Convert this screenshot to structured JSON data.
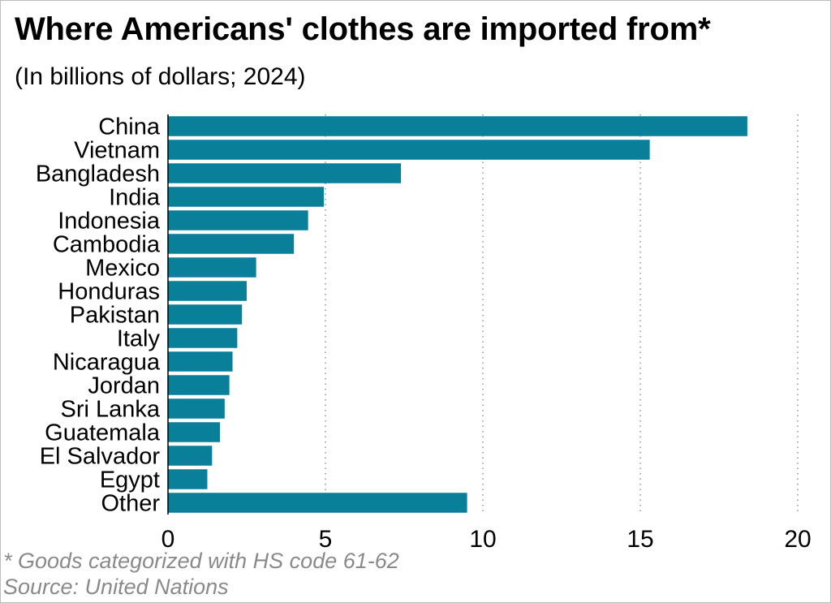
{
  "title": "Where Americans' clothes are imported from*",
  "subtitle": "(In billions of dollars; 2024)",
  "footnote": "* Goods categorized with HS code 61-62",
  "source": "Source: United Nations",
  "colors": {
    "bar": "#0a7f9a",
    "grid": "#9a9a9a",
    "axis": "#000000",
    "note": "#8a8a8a"
  },
  "chart_data": {
    "type": "bar",
    "orientation": "horizontal",
    "title": "Where Americans' clothes are imported from*",
    "subtitle": "(In billions of dollars; 2024)",
    "xlabel": "",
    "ylabel": "",
    "categories": [
      "China",
      "Vietnam",
      "Bangladesh",
      "India",
      "Indonesia",
      "Cambodia",
      "Mexico",
      "Honduras",
      "Pakistan",
      "Italy",
      "Nicaragua",
      "Jordan",
      "Sri Lanka",
      "Guatemala",
      "El Salvador",
      "Egypt",
      "Other"
    ],
    "values": [
      18.4,
      15.3,
      7.4,
      4.95,
      4.45,
      4.0,
      2.8,
      2.5,
      2.35,
      2.2,
      2.05,
      1.95,
      1.8,
      1.65,
      1.4,
      1.25,
      9.5
    ],
    "xlim": [
      0,
      20
    ],
    "xticks": [
      "0",
      "5",
      "10",
      "15",
      "20"
    ],
    "grid": "vertical dotted",
    "legend": "none"
  }
}
